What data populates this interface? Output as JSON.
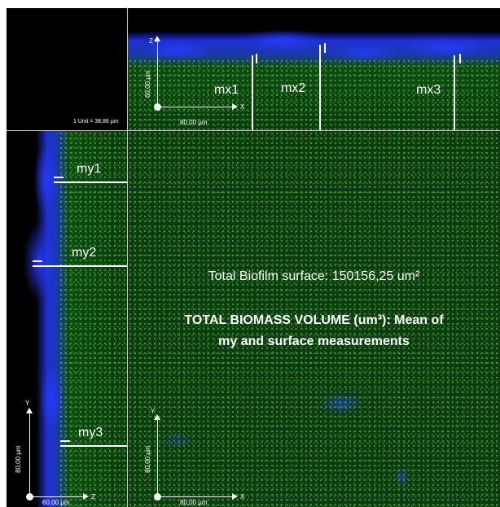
{
  "corner": {
    "unit_label": "1 Unit = 38,86 µm"
  },
  "xz_view": {
    "markers": [
      "mx1",
      "mx2",
      "mx3"
    ],
    "axis": {
      "vertical": "Z",
      "horizontal": "X",
      "vertical_scale": "60,00 µm",
      "horizontal_scale": "80,00 µm"
    }
  },
  "yz_view": {
    "markers": [
      "my1",
      "my2",
      "my3"
    ],
    "axis": {
      "vertical": "Y",
      "horizontal": "Z",
      "vertical_scale": "80,00 µm",
      "horizontal_scale": "60,00 µm"
    }
  },
  "xy_view": {
    "surface_text": "Total Biofilm surface: 150156,25 um²",
    "volume_title_line1": "TOTAL BIOMASS VOLUME (um³): Mean of",
    "volume_title_line2": "my and surface measurements",
    "axis": {
      "vertical": "Y",
      "horizontal": "X",
      "vertical_scale": "80,00 µm",
      "horizontal_scale": "80,00 µm"
    }
  },
  "colors": {
    "biofilm_green": "#3fd23a",
    "surface_blue": "#2a3cff",
    "marker": "#ffffff"
  }
}
